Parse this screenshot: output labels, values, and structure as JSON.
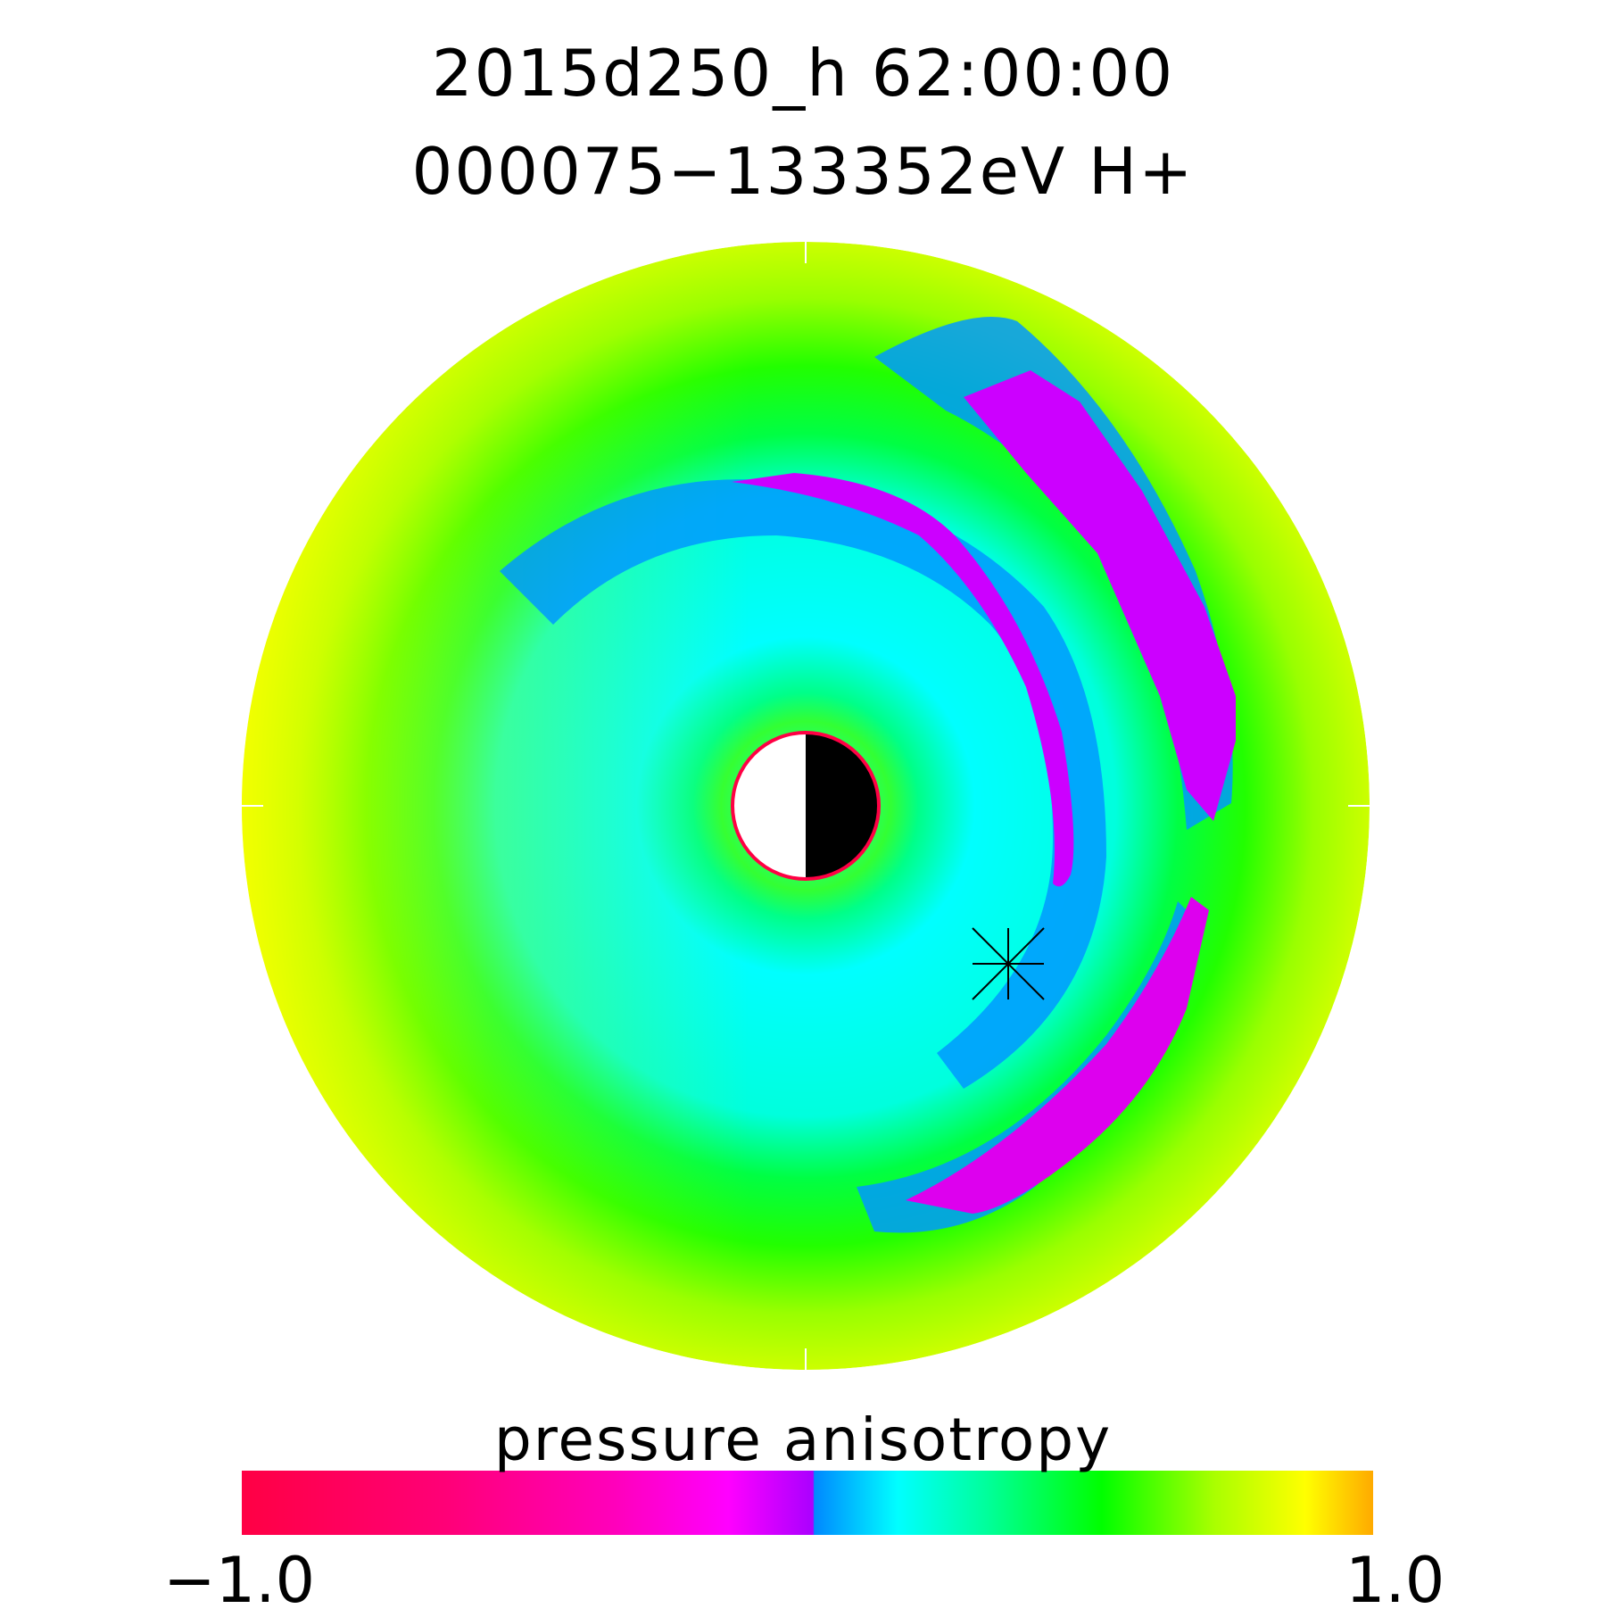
{
  "chart_data": {
    "type": "heatmap",
    "projection": "polar (equatorial plane, view from north)",
    "title_line_1": "2015d250_h   62:00:00",
    "title_line_2": "000075−133352eV H+",
    "colorbar": {
      "label": "pressure anisotropy",
      "min": -1.0,
      "max": 1.0,
      "min_label": "−1.0",
      "max_label": "1.0",
      "colors": [
        "#ff0044",
        "#ff0077",
        "#ff00aa",
        "#ff00dd",
        "#ff00ff",
        "#cc00ff",
        "#0088ff",
        "#00ccff",
        "#00ffff",
        "#00ffaa",
        "#00ff55",
        "#00ff00",
        "#66ff00",
        "#aaff00",
        "#ddff00",
        "#ffff00",
        "#ffcc00",
        "#ffaa00"
      ]
    },
    "regions": [
      {
        "name": "outer ring",
        "value": 0.7,
        "color": "#aaff00"
      },
      {
        "name": "middle ring",
        "value": 0.4,
        "color": "#00ff33"
      },
      {
        "name": "inner region",
        "value": 0.05,
        "color": "#00ffff"
      },
      {
        "name": "near-earth ring",
        "value": 0.4,
        "color": "#33ff33"
      },
      {
        "name": "dusk-side arc",
        "value": -0.3,
        "color": "#cc00ff"
      },
      {
        "name": "dawn-side arc",
        "value": -0.3,
        "color": "#dd00ee"
      },
      {
        "name": "midnight/dusk outer arc",
        "value": -0.3,
        "color": "#cc00ff"
      }
    ],
    "markers": [
      {
        "name": "satellite position",
        "symbol": "asterisk"
      }
    ],
    "earth": {
      "day_side": "left",
      "night_side": "right"
    }
  }
}
